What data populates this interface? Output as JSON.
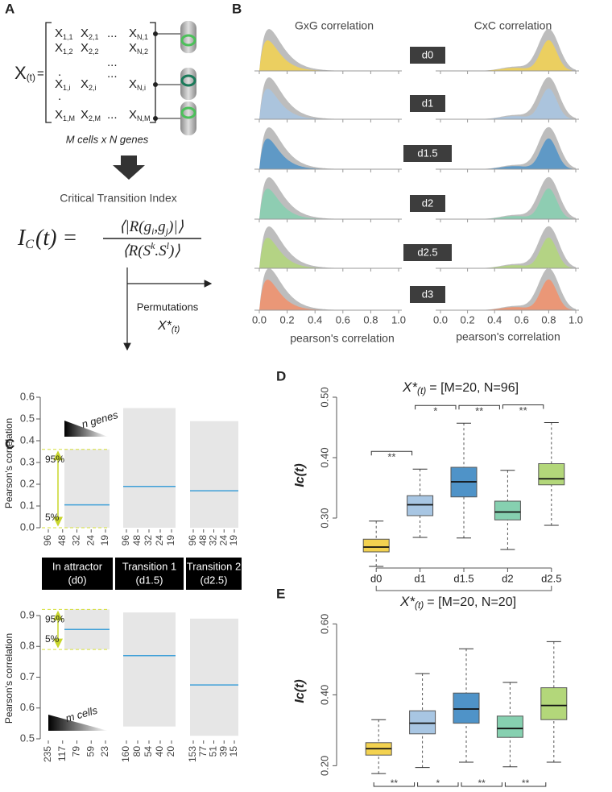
{
  "panel_a": {
    "label": "A",
    "lhs": "X",
    "lhs_sub": "(t)",
    "lhs_eq": "=",
    "entries": [
      {
        "sym": "X",
        "sub": "1,1"
      },
      {
        "sym": "X",
        "sub": "2,1"
      },
      "...",
      {
        "sym": "X",
        "sub": "N,1"
      },
      {
        "sym": "X",
        "sub": "1,2"
      },
      {
        "sym": "X",
        "sub": "2,2"
      },
      {
        "sym": "X",
        "sub": "N,2"
      },
      "...",
      ".",
      "...",
      {
        "sym": "X",
        "sub": "1,i"
      },
      {
        "sym": "X",
        "sub": "2,i"
      },
      {
        "sym": "X",
        "sub": "N,i"
      },
      ".",
      {
        "sym": "X",
        "sub": "1,M"
      },
      {
        "sym": "X",
        "sub": "2,M"
      },
      "...",
      {
        "sym": "X",
        "sub": "N,M"
      }
    ],
    "caption": "M cells x N genes",
    "index_title": "Critical Transition Index",
    "formula": {
      "lhs": [
        "I",
        "C",
        "(t) ="
      ],
      "numerator": [
        "⟨|R(g",
        "i",
        ",g",
        "j",
        ")|⟩"
      ],
      "denominator": [
        "⟨R(S",
        "k",
        ".S",
        "l",
        ")⟩"
      ]
    },
    "permutations": "Permutations",
    "perm_sym": "X*",
    "perm_sub": "(t)"
  },
  "panel_b": {
    "label": "B",
    "titles": [
      "GxG correlation",
      "CxC correlation"
    ],
    "days": [
      {
        "name": "d0",
        "color": "#f3d250"
      },
      {
        "name": "d1",
        "color": "#a8c6e3"
      },
      {
        "name": "d1.5",
        "color": "#4f93c8"
      },
      {
        "name": "d2",
        "color": "#86d0b0"
      },
      {
        "name": "d2.5",
        "color": "#b3d77a"
      },
      {
        "name": "d3",
        "color": "#f2906b"
      }
    ],
    "xlim": [
      0,
      1
    ],
    "xticks": [
      {
        "value": 0,
        "label": "0.0"
      },
      0.2,
      0.4,
      0.6,
      0.8,
      {
        "value": 1,
        "label": "1.0"
      }
    ],
    "xlabels": [
      "pearson's correlation",
      "pearson's correlation"
    ]
  },
  "panel_c": {
    "label": "C",
    "ylabel": "Pearson's correlation",
    "p95": "95%",
    "p5": "5%",
    "headers": [
      {
        "title": "In attractor",
        "sub": "(d0)"
      },
      {
        "title": "Transition 1",
        "sub": "(d1.5)"
      },
      {
        "title": "Transition 2",
        "sub": "(d2.5)"
      }
    ],
    "top": {
      "legend": "n genes",
      "ylim": [
        0,
        0.6
      ],
      "yticks": [
        {
          "value": 0,
          "label": "0.0"
        },
        0.1,
        0.2,
        0.3,
        0.4,
        0.5,
        0.6
      ],
      "groups": [
        {
          "ticks": [
            96,
            48,
            32,
            24,
            19
          ],
          "band": [
            0,
            0.36
          ],
          "mean": 0.105
        },
        {
          "ticks": [
            96,
            48,
            32,
            24,
            19
          ],
          "band": [
            0,
            0.55
          ],
          "mean": 0.19
        },
        {
          "ticks": [
            96,
            48,
            32,
            24,
            19
          ],
          "band": [
            0,
            0.49
          ],
          "mean": 0.17
        }
      ]
    },
    "bottom": {
      "legend": "m cells",
      "ylim": [
        0.5,
        0.9
      ],
      "yticks": [
        0.5,
        0.6,
        0.7,
        0.8,
        0.9
      ],
      "groups": [
        {
          "ticks": [
            235,
            117,
            79,
            59,
            23
          ],
          "band": [
            0.79,
            0.92
          ],
          "mean": 0.855
        },
        {
          "ticks": [
            160,
            80,
            54,
            40,
            20
          ],
          "band": [
            0.54,
            0.91
          ],
          "mean": 0.77
        },
        {
          "ticks": [
            153,
            77,
            51,
            39,
            15
          ],
          "band": [
            0.51,
            0.89
          ],
          "mean": 0.675
        }
      ]
    }
  },
  "chart_data": [
    {
      "type": "box",
      "label": "D",
      "title_symbol": "X*",
      "title_sub": "(t)",
      "title": "= [M=20, N=96]",
      "ylabel": "Ic(t)",
      "categories": [
        "d0",
        "d1",
        "d1.5",
        "d2",
        "d2.5"
      ],
      "colors": [
        "#f3d250",
        "#a8c6e3",
        "#4f93c8",
        "#86d0b0",
        "#b3d77a"
      ],
      "boxes": [
        {
          "min": 0.22,
          "q1": 0.244,
          "median": 0.252,
          "q3": 0.265,
          "max": 0.295
        },
        {
          "min": 0.268,
          "q1": 0.304,
          "median": 0.322,
          "q3": 0.337,
          "max": 0.381
        },
        {
          "min": 0.267,
          "q1": 0.335,
          "median": 0.36,
          "q3": 0.384,
          "max": 0.457
        },
        {
          "min": 0.248,
          "q1": 0.297,
          "median": 0.31,
          "q3": 0.328,
          "max": 0.379
        },
        {
          "min": 0.288,
          "q1": 0.355,
          "median": 0.365,
          "q3": 0.39,
          "max": 0.458
        }
      ],
      "ylim": [
        0.22,
        0.52
      ],
      "yticks": [
        {
          "value": 0.3,
          "label": "0.30"
        },
        {
          "value": 0.4,
          "label": "0.40"
        },
        {
          "value": 0.5,
          "label": "0.50"
        }
      ],
      "significance": [
        "**",
        "*",
        "**",
        "**"
      ],
      "significance_position": "above"
    },
    {
      "type": "box",
      "label": "E",
      "title_symbol": "X*",
      "title_sub": "(t)",
      "title": "= [M=20, N=20]",
      "ylabel": "Ic(t)",
      "colors": [
        "#f3d250",
        "#a8c6e3",
        "#4f93c8",
        "#86d0b0",
        "#b3d77a"
      ],
      "boxes": [
        {
          "min": 0.178,
          "q1": 0.23,
          "median": 0.248,
          "q3": 0.265,
          "max": 0.33
        },
        {
          "min": 0.195,
          "q1": 0.29,
          "median": 0.32,
          "q3": 0.355,
          "max": 0.46
        },
        {
          "min": 0.21,
          "q1": 0.32,
          "median": 0.36,
          "q3": 0.405,
          "max": 0.53
        },
        {
          "min": 0.197,
          "q1": 0.28,
          "median": 0.305,
          "q3": 0.34,
          "max": 0.435
        },
        {
          "min": 0.21,
          "q1": 0.33,
          "median": 0.37,
          "q3": 0.42,
          "max": 0.55
        }
      ],
      "ylim": [
        0.16,
        0.66
      ],
      "yticks": [
        {
          "value": 0.2,
          "label": "0.20"
        },
        {
          "value": 0.4,
          "label": "0.40"
        },
        {
          "value": 0.6,
          "label": "0.60"
        }
      ],
      "significance": [
        "**",
        "*",
        "**",
        "**"
      ],
      "significance_position": "below"
    }
  ]
}
